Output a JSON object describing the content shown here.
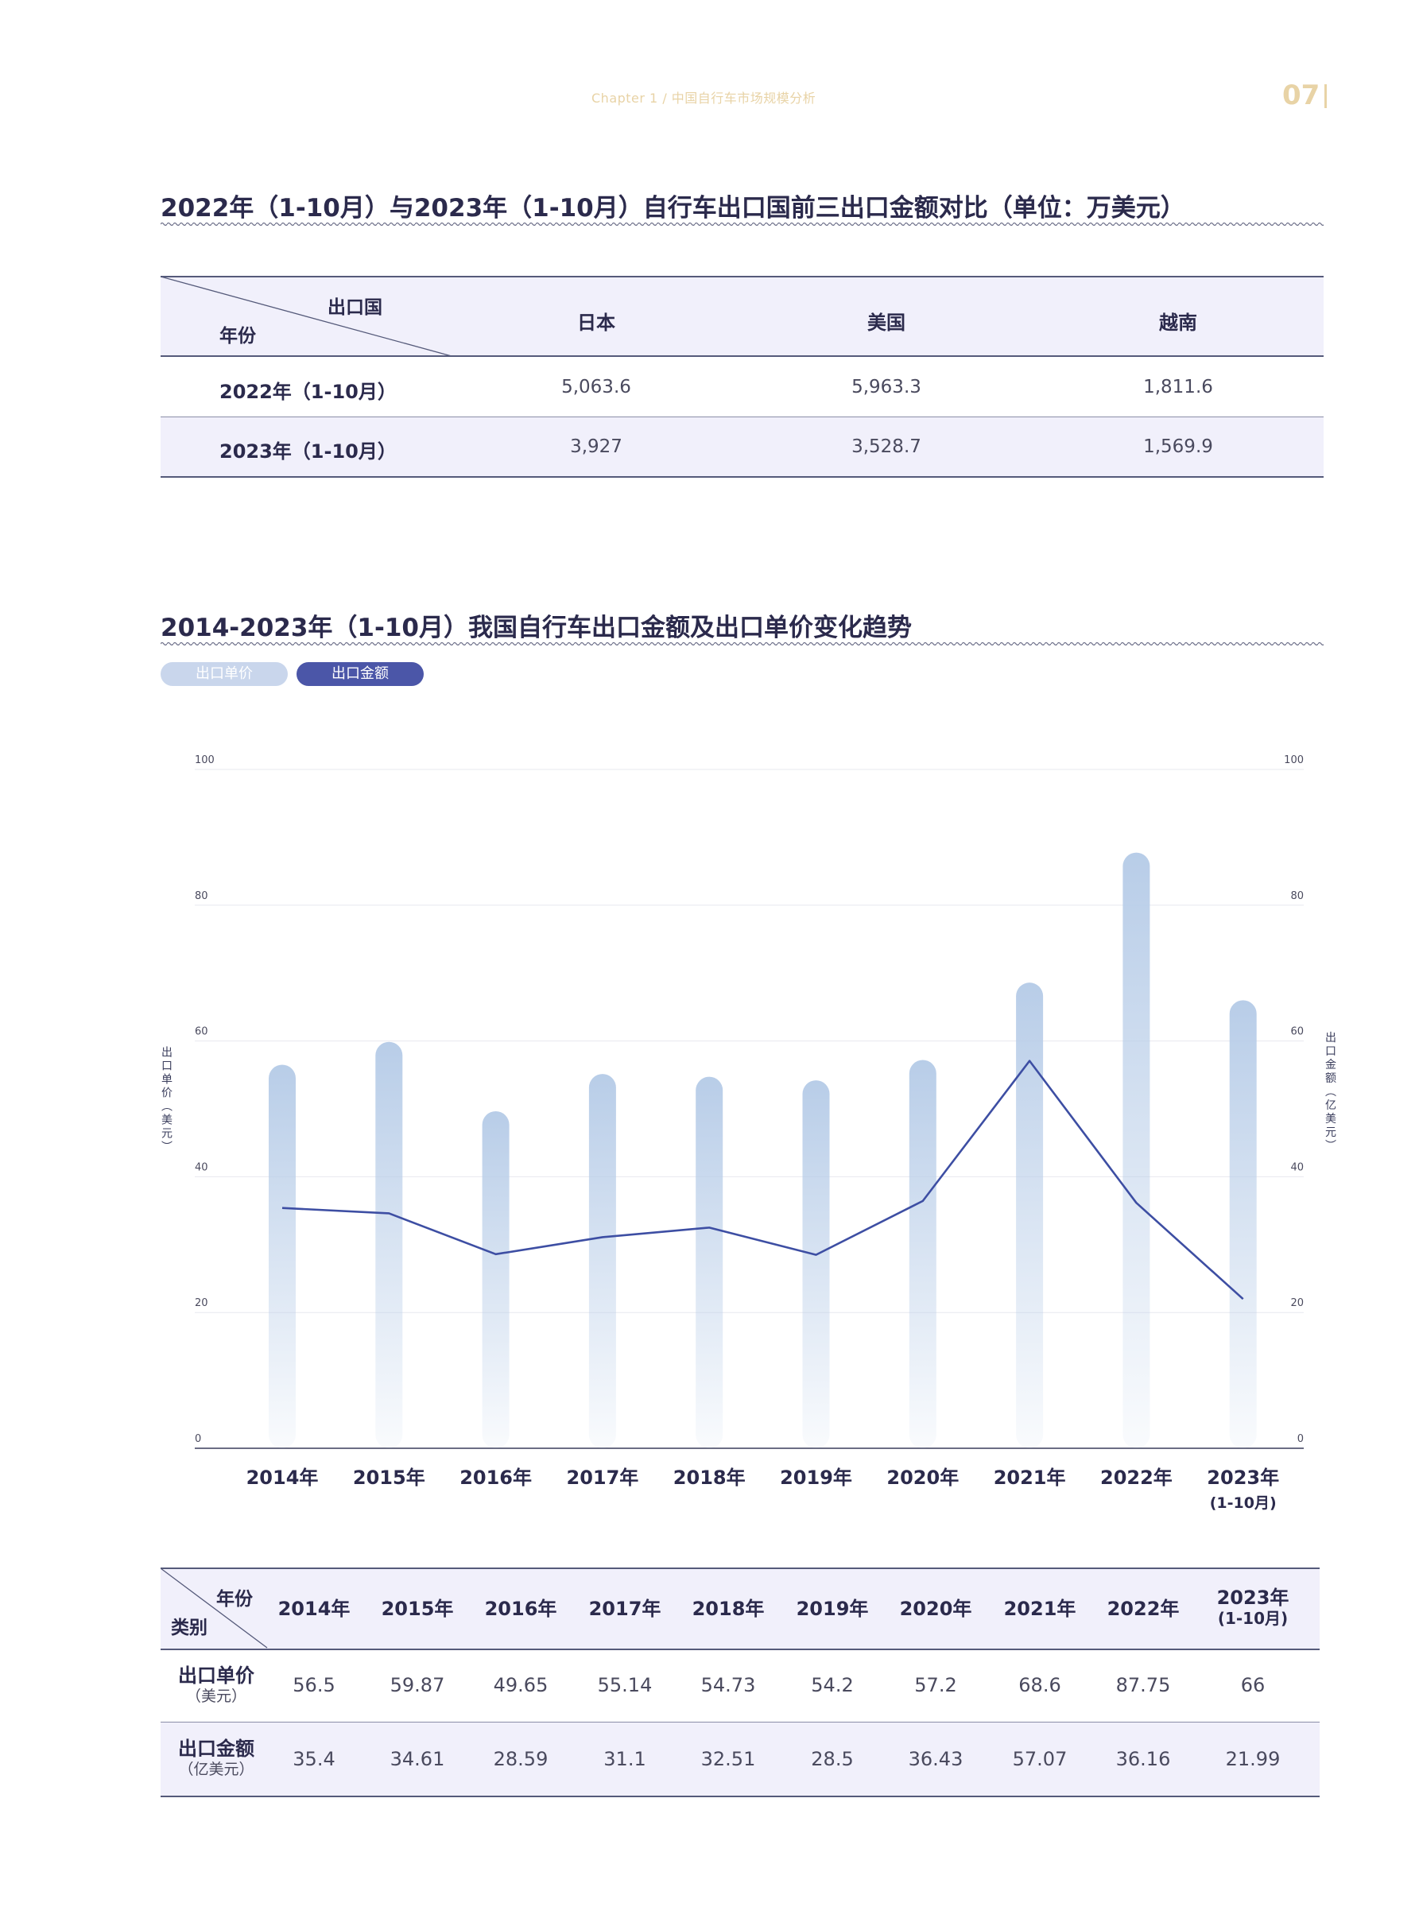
{
  "header": {
    "chapter": "Chapter 1  /  中国自行车市场规模分析",
    "page": "07"
  },
  "table1": {
    "title": "2022年（1-10月）与2023年（1-10月）自行车出口国前三出口金额对比（单位：万美元）",
    "corner_col": "出口国",
    "corner_row": "年份",
    "columns": [
      "日本",
      "美国",
      "越南"
    ],
    "rows": [
      {
        "label": "2022年（1-10月）",
        "values": [
          "5,063.6",
          "5,963.3",
          "1,811.6"
        ]
      },
      {
        "label": "2023年（1-10月）",
        "values": [
          "3,927",
          "3,528.7",
          "1,569.9"
        ]
      }
    ]
  },
  "chart_section": {
    "title": "2014-2023年（1-10月）我国自行车出口金额及出口单价变化趋势",
    "legend": [
      "出口单价",
      "出口金额"
    ]
  },
  "chart_data": {
    "type": "bar",
    "categories": [
      "2014年",
      "2015年",
      "2016年",
      "2017年",
      "2018年",
      "2019年",
      "2020年",
      "2021年",
      "2022年",
      "2023年"
    ],
    "category_sublabels": [
      "",
      "",
      "",
      "",
      "",
      "",
      "",
      "",
      "",
      "(1-10月)"
    ],
    "series": [
      {
        "name": "出口单价",
        "type": "bar",
        "axis": "left",
        "values": [
          56.5,
          59.87,
          49.65,
          55.14,
          54.73,
          54.2,
          57.2,
          68.6,
          87.75,
          66
        ]
      },
      {
        "name": "出口金额",
        "type": "line",
        "axis": "right",
        "values": [
          35.4,
          34.61,
          28.59,
          31.1,
          32.51,
          28.5,
          36.43,
          57.07,
          36.16,
          21.99
        ]
      }
    ],
    "ylabel_left": "出口单价（美元）",
    "ylabel_right": "出口金额（亿美元）",
    "ylim": [
      0,
      100
    ],
    "yticks": [
      0,
      20,
      40,
      60,
      80,
      100
    ],
    "grid": true,
    "legend_position": "top-left",
    "colors": {
      "bar": "#b8cde8",
      "line": "#3d4ea3",
      "legend_bar": "#c9d6ec",
      "legend_line": "#4b56a8"
    }
  },
  "table2": {
    "corner_col": "年份",
    "corner_row": "类别",
    "columns": [
      {
        "label": "2014年",
        "sub": ""
      },
      {
        "label": "2015年",
        "sub": ""
      },
      {
        "label": "2016年",
        "sub": ""
      },
      {
        "label": "2017年",
        "sub": ""
      },
      {
        "label": "2018年",
        "sub": ""
      },
      {
        "label": "2019年",
        "sub": ""
      },
      {
        "label": "2020年",
        "sub": ""
      },
      {
        "label": "2021年",
        "sub": ""
      },
      {
        "label": "2022年",
        "sub": ""
      },
      {
        "label": "2023年",
        "sub": "(1-10月)"
      }
    ],
    "rows": [
      {
        "label": "出口单价",
        "unit": "（美元）",
        "values": [
          "56.5",
          "59.87",
          "49.65",
          "55.14",
          "54.73",
          "54.2",
          "57.2",
          "68.6",
          "87.75",
          "66"
        ]
      },
      {
        "label": "出口金额",
        "unit": "（亿美元）",
        "values": [
          "35.4",
          "34.61",
          "28.59",
          "31.1",
          "32.51",
          "28.5",
          "36.43",
          "57.07",
          "36.16",
          "21.99"
        ]
      }
    ]
  }
}
